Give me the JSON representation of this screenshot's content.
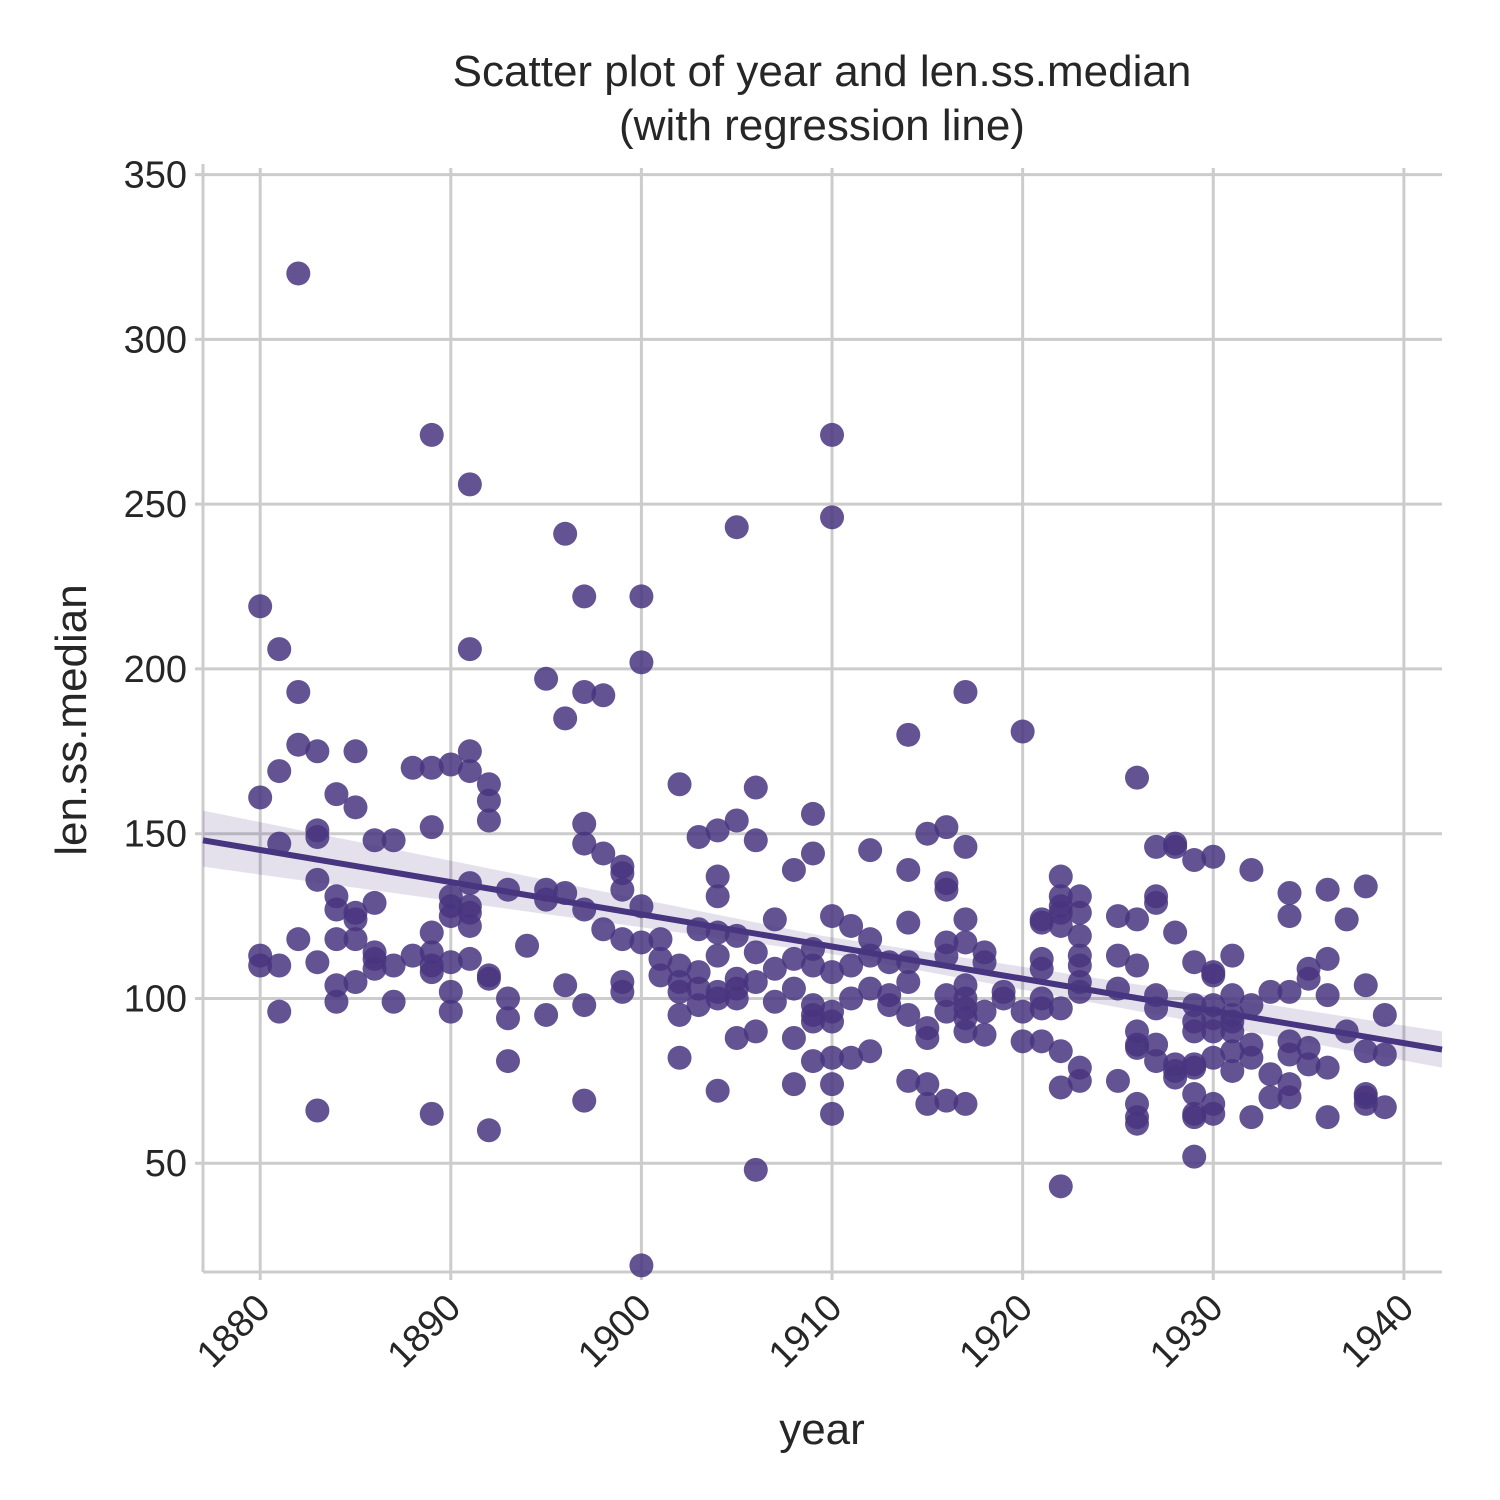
{
  "chart_data": {
    "type": "scatter",
    "title_line1": "Scatter plot of year and len.ss.median",
    "title_line2": "(with regression line)",
    "xlabel": "year",
    "ylabel": "len.ss.median",
    "xlim": [
      1877,
      1942
    ],
    "ylim": [
      17,
      352
    ],
    "xticks": [
      1880,
      1890,
      1900,
      1910,
      1920,
      1930,
      1940
    ],
    "yticks": [
      50,
      100,
      150,
      200,
      250,
      300,
      350
    ],
    "grid": true,
    "point_color": "#48357f",
    "regression": {
      "x0": 1877,
      "y0": 148,
      "x1": 1942,
      "y1": 84.5,
      "ci_start": [
        140,
        157
      ],
      "ci_mid": [
        114,
        119
      ],
      "ci_end": [
        79,
        90
      ]
    },
    "points": [
      [
        1880,
        219
      ],
      [
        1880,
        161
      ],
      [
        1880,
        113
      ],
      [
        1880,
        110
      ],
      [
        1881,
        206
      ],
      [
        1881,
        169
      ],
      [
        1881,
        147
      ],
      [
        1881,
        110
      ],
      [
        1881,
        96
      ],
      [
        1882,
        320
      ],
      [
        1882,
        193
      ],
      [
        1882,
        177
      ],
      [
        1882,
        118
      ],
      [
        1883,
        175
      ],
      [
        1883,
        151
      ],
      [
        1883,
        149
      ],
      [
        1883,
        136
      ],
      [
        1883,
        111
      ],
      [
        1883,
        66
      ],
      [
        1884,
        162
      ],
      [
        1884,
        131
      ],
      [
        1884,
        127
      ],
      [
        1884,
        118
      ],
      [
        1884,
        104
      ],
      [
        1884,
        99
      ],
      [
        1885,
        175
      ],
      [
        1885,
        158
      ],
      [
        1885,
        126
      ],
      [
        1885,
        124
      ],
      [
        1885,
        118
      ],
      [
        1885,
        105
      ],
      [
        1886,
        148
      ],
      [
        1886,
        129
      ],
      [
        1886,
        114
      ],
      [
        1886,
        112
      ],
      [
        1886,
        109
      ],
      [
        1887,
        148
      ],
      [
        1887,
        110
      ],
      [
        1887,
        99
      ],
      [
        1888,
        170
      ],
      [
        1888,
        113
      ],
      [
        1889,
        271
      ],
      [
        1889,
        170
      ],
      [
        1889,
        152
      ],
      [
        1889,
        120
      ],
      [
        1889,
        114
      ],
      [
        1889,
        110
      ],
      [
        1889,
        108
      ],
      [
        1889,
        65
      ],
      [
        1890,
        171
      ],
      [
        1890,
        131
      ],
      [
        1890,
        128
      ],
      [
        1890,
        125
      ],
      [
        1890,
        111
      ],
      [
        1890,
        102
      ],
      [
        1890,
        96
      ],
      [
        1891,
        256
      ],
      [
        1891,
        206
      ],
      [
        1891,
        175
      ],
      [
        1891,
        169
      ],
      [
        1891,
        135
      ],
      [
        1891,
        128
      ],
      [
        1891,
        126
      ],
      [
        1891,
        122
      ],
      [
        1891,
        112
      ],
      [
        1892,
        165
      ],
      [
        1892,
        160
      ],
      [
        1892,
        154
      ],
      [
        1892,
        107
      ],
      [
        1892,
        106
      ],
      [
        1892,
        60
      ],
      [
        1893,
        133
      ],
      [
        1893,
        100
      ],
      [
        1893,
        94
      ],
      [
        1893,
        81
      ],
      [
        1894,
        116
      ],
      [
        1895,
        197
      ],
      [
        1895,
        133
      ],
      [
        1895,
        130
      ],
      [
        1895,
        95
      ],
      [
        1896,
        241
      ],
      [
        1896,
        185
      ],
      [
        1896,
        132
      ],
      [
        1896,
        104
      ],
      [
        1897,
        222
      ],
      [
        1897,
        193
      ],
      [
        1897,
        153
      ],
      [
        1897,
        147
      ],
      [
        1897,
        127
      ],
      [
        1897,
        98
      ],
      [
        1897,
        69
      ],
      [
        1898,
        192
      ],
      [
        1898,
        144
      ],
      [
        1898,
        121
      ],
      [
        1899,
        140
      ],
      [
        1899,
        138
      ],
      [
        1899,
        133
      ],
      [
        1899,
        118
      ],
      [
        1899,
        105
      ],
      [
        1899,
        102
      ],
      [
        1900,
        222
      ],
      [
        1900,
        202
      ],
      [
        1900,
        128
      ],
      [
        1900,
        117
      ],
      [
        1900,
        19
      ],
      [
        1901,
        118
      ],
      [
        1901,
        112
      ],
      [
        1901,
        107
      ],
      [
        1902,
        165
      ],
      [
        1902,
        110
      ],
      [
        1902,
        105
      ],
      [
        1902,
        102
      ],
      [
        1902,
        95
      ],
      [
        1902,
        82
      ],
      [
        1903,
        149
      ],
      [
        1903,
        121
      ],
      [
        1903,
        108
      ],
      [
        1903,
        103
      ],
      [
        1903,
        98
      ],
      [
        1904,
        151
      ],
      [
        1904,
        137
      ],
      [
        1904,
        131
      ],
      [
        1904,
        120
      ],
      [
        1904,
        113
      ],
      [
        1904,
        102
      ],
      [
        1904,
        100
      ],
      [
        1904,
        72
      ],
      [
        1905,
        243
      ],
      [
        1905,
        154
      ],
      [
        1905,
        119
      ],
      [
        1905,
        106
      ],
      [
        1905,
        103
      ],
      [
        1905,
        100
      ],
      [
        1905,
        88
      ],
      [
        1906,
        164
      ],
      [
        1906,
        148
      ],
      [
        1906,
        114
      ],
      [
        1906,
        105
      ],
      [
        1906,
        90
      ],
      [
        1906,
        48
      ],
      [
        1907,
        124
      ],
      [
        1907,
        109
      ],
      [
        1907,
        99
      ],
      [
        1908,
        139
      ],
      [
        1908,
        112
      ],
      [
        1908,
        103
      ],
      [
        1908,
        88
      ],
      [
        1908,
        74
      ],
      [
        1909,
        156
      ],
      [
        1909,
        144
      ],
      [
        1909,
        115
      ],
      [
        1909,
        110
      ],
      [
        1909,
        98
      ],
      [
        1909,
        95
      ],
      [
        1909,
        93
      ],
      [
        1909,
        81
      ],
      [
        1910,
        271
      ],
      [
        1910,
        246
      ],
      [
        1910,
        125
      ],
      [
        1910,
        108
      ],
      [
        1910,
        96
      ],
      [
        1910,
        93
      ],
      [
        1910,
        82
      ],
      [
        1910,
        74
      ],
      [
        1910,
        65
      ],
      [
        1911,
        122
      ],
      [
        1911,
        110
      ],
      [
        1911,
        100
      ],
      [
        1911,
        82
      ],
      [
        1912,
        145
      ],
      [
        1912,
        118
      ],
      [
        1912,
        113
      ],
      [
        1912,
        103
      ],
      [
        1912,
        84
      ],
      [
        1913,
        111
      ],
      [
        1913,
        101
      ],
      [
        1913,
        98
      ],
      [
        1914,
        180
      ],
      [
        1914,
        139
      ],
      [
        1914,
        123
      ],
      [
        1914,
        111
      ],
      [
        1914,
        105
      ],
      [
        1914,
        95
      ],
      [
        1914,
        75
      ],
      [
        1915,
        150
      ],
      [
        1915,
        91
      ],
      [
        1915,
        88
      ],
      [
        1915,
        74
      ],
      [
        1915,
        68
      ],
      [
        1916,
        152
      ],
      [
        1916,
        135
      ],
      [
        1916,
        133
      ],
      [
        1916,
        117
      ],
      [
        1916,
        113
      ],
      [
        1916,
        101
      ],
      [
        1916,
        96
      ],
      [
        1916,
        69
      ],
      [
        1917,
        193
      ],
      [
        1917,
        146
      ],
      [
        1917,
        124
      ],
      [
        1917,
        117
      ],
      [
        1917,
        104
      ],
      [
        1917,
        100
      ],
      [
        1917,
        97
      ],
      [
        1917,
        94
      ],
      [
        1917,
        90
      ],
      [
        1917,
        68
      ],
      [
        1918,
        114
      ],
      [
        1918,
        111
      ],
      [
        1918,
        96
      ],
      [
        1918,
        89
      ],
      [
        1919,
        102
      ],
      [
        1919,
        100
      ],
      [
        1920,
        181
      ],
      [
        1920,
        96
      ],
      [
        1920,
        87
      ],
      [
        1921,
        124
      ],
      [
        1921,
        123
      ],
      [
        1921,
        112
      ],
      [
        1921,
        109
      ],
      [
        1921,
        100
      ],
      [
        1921,
        97
      ],
      [
        1921,
        87
      ],
      [
        1922,
        137
      ],
      [
        1922,
        131
      ],
      [
        1922,
        128
      ],
      [
        1922,
        126
      ],
      [
        1922,
        122
      ],
      [
        1922,
        97
      ],
      [
        1922,
        84
      ],
      [
        1922,
        73
      ],
      [
        1922,
        43
      ],
      [
        1923,
        131
      ],
      [
        1923,
        126
      ],
      [
        1923,
        119
      ],
      [
        1923,
        113
      ],
      [
        1923,
        110
      ],
      [
        1923,
        105
      ],
      [
        1923,
        102
      ],
      [
        1923,
        79
      ],
      [
        1923,
        75
      ],
      [
        1925,
        125
      ],
      [
        1925,
        113
      ],
      [
        1925,
        103
      ],
      [
        1925,
        75
      ],
      [
        1926,
        167
      ],
      [
        1926,
        124
      ],
      [
        1926,
        110
      ],
      [
        1926,
        90
      ],
      [
        1926,
        86
      ],
      [
        1926,
        85
      ],
      [
        1926,
        68
      ],
      [
        1926,
        64
      ],
      [
        1926,
        62
      ],
      [
        1927,
        146
      ],
      [
        1927,
        131
      ],
      [
        1927,
        129
      ],
      [
        1927,
        101
      ],
      [
        1927,
        97
      ],
      [
        1927,
        86
      ],
      [
        1927,
        81
      ],
      [
        1928,
        147
      ],
      [
        1928,
        146
      ],
      [
        1928,
        120
      ],
      [
        1928,
        80
      ],
      [
        1928,
        78
      ],
      [
        1928,
        76
      ],
      [
        1929,
        142
      ],
      [
        1929,
        111
      ],
      [
        1929,
        98
      ],
      [
        1929,
        93
      ],
      [
        1929,
        90
      ],
      [
        1929,
        80
      ],
      [
        1929,
        79
      ],
      [
        1929,
        71
      ],
      [
        1929,
        65
      ],
      [
        1929,
        64
      ],
      [
        1929,
        52
      ],
      [
        1930,
        143
      ],
      [
        1930,
        108
      ],
      [
        1930,
        107
      ],
      [
        1930,
        98
      ],
      [
        1930,
        94
      ],
      [
        1930,
        90
      ],
      [
        1930,
        82
      ],
      [
        1930,
        68
      ],
      [
        1930,
        65
      ],
      [
        1931,
        113
      ],
      [
        1931,
        101
      ],
      [
        1931,
        95
      ],
      [
        1931,
        93
      ],
      [
        1931,
        90
      ],
      [
        1931,
        84
      ],
      [
        1931,
        78
      ],
      [
        1932,
        139
      ],
      [
        1932,
        98
      ],
      [
        1932,
        86
      ],
      [
        1932,
        82
      ],
      [
        1932,
        64
      ],
      [
        1933,
        102
      ],
      [
        1933,
        77
      ],
      [
        1933,
        70
      ],
      [
        1934,
        132
      ],
      [
        1934,
        125
      ],
      [
        1934,
        102
      ],
      [
        1934,
        87
      ],
      [
        1934,
        83
      ],
      [
        1934,
        74
      ],
      [
        1934,
        70
      ],
      [
        1935,
        109
      ],
      [
        1935,
        106
      ],
      [
        1935,
        85
      ],
      [
        1935,
        80
      ],
      [
        1936,
        133
      ],
      [
        1936,
        112
      ],
      [
        1936,
        101
      ],
      [
        1936,
        79
      ],
      [
        1936,
        64
      ],
      [
        1937,
        124
      ],
      [
        1937,
        90
      ],
      [
        1938,
        134
      ],
      [
        1938,
        104
      ],
      [
        1938,
        84
      ],
      [
        1938,
        71
      ],
      [
        1938,
        70
      ],
      [
        1938,
        68
      ],
      [
        1939,
        95
      ],
      [
        1939,
        83
      ],
      [
        1939,
        67
      ]
    ]
  }
}
